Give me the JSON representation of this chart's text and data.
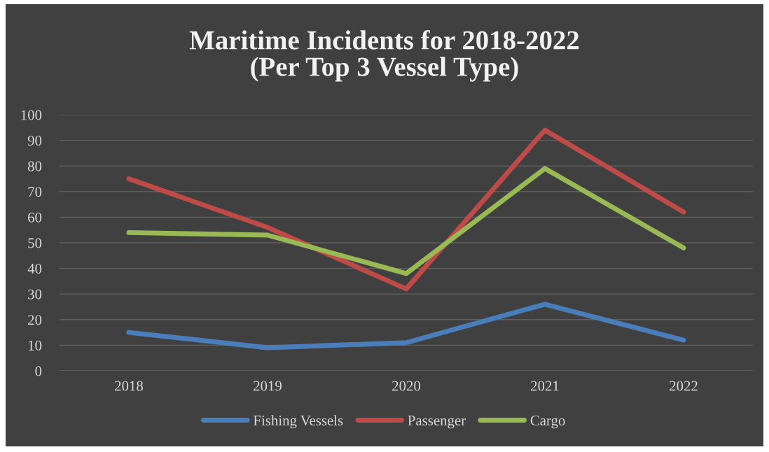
{
  "chart_data": {
    "type": "line",
    "title": "Maritime Incidents for 2018-2022\n(Per Top 3 Vessel Type)",
    "categories": [
      "2018",
      "2019",
      "2020",
      "2021",
      "2022"
    ],
    "series": [
      {
        "name": "Fishing Vessels",
        "color": "#4a7ebb",
        "values": [
          15,
          9,
          11,
          26,
          12
        ]
      },
      {
        "name": "Passenger",
        "color": "#be4b48",
        "values": [
          75,
          56,
          32,
          94,
          62
        ]
      },
      {
        "name": "Cargo",
        "color": "#98b954",
        "values": [
          54,
          53,
          38,
          79,
          48
        ]
      }
    ],
    "ylim": [
      0,
      100
    ],
    "yticks": [
      0,
      10,
      20,
      30,
      40,
      50,
      60,
      70,
      80,
      90,
      100
    ],
    "grid": "y",
    "legend": "bottom",
    "marker": "none",
    "line_style": "solid"
  }
}
